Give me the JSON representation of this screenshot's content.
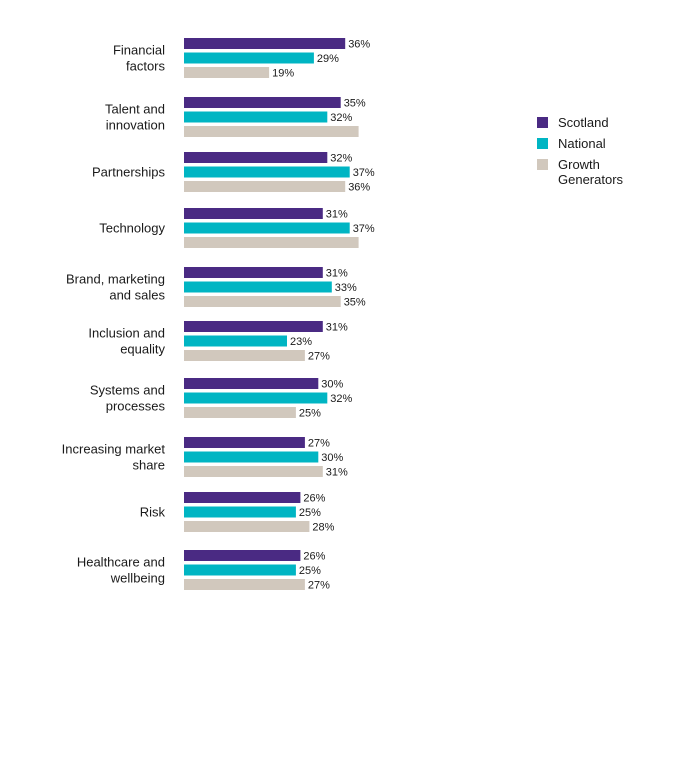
{
  "chart_data": {
    "type": "bar",
    "orientation": "horizontal",
    "categories": [
      [
        "Financial",
        "factors"
      ],
      [
        "Talent and",
        "innovation"
      ],
      [
        "Partnerships"
      ],
      [
        "Technology"
      ],
      [
        "Brand, marketing",
        "and sales"
      ],
      [
        "Inclusion and",
        "equality"
      ],
      [
        "Systems and",
        "processes"
      ],
      [
        "Increasing market",
        "share"
      ],
      [
        "Risk"
      ],
      [
        "Healthcare and",
        "wellbeing"
      ]
    ],
    "series": [
      {
        "name": "Scotland",
        "color": "#4a2a83",
        "values": [
          36,
          35,
          32,
          31,
          31,
          31,
          30,
          27,
          26,
          26
        ]
      },
      {
        "name": "National",
        "color": "#00b5c3",
        "values": [
          29,
          32,
          37,
          37,
          33,
          23,
          32,
          30,
          25,
          25
        ]
      },
      {
        "name": "Growth Generators",
        "color": "#d1c8bd",
        "values": [
          19,
          39,
          36,
          39,
          35,
          27,
          25,
          31,
          28,
          27
        ]
      }
    ],
    "value_labels": [
      [
        "36%",
        "29%",
        "19%"
      ],
      [
        "35%",
        "32%",
        ""
      ],
      [
        "32%",
        "37%",
        "36%"
      ],
      [
        "31%",
        "37%",
        ""
      ],
      [
        "31%",
        "33%",
        "35%"
      ],
      [
        "31%",
        "23%",
        "27%"
      ],
      [
        "30%",
        "32%",
        "25%"
      ],
      [
        "27%",
        "30%",
        "31%"
      ],
      [
        "26%",
        "25%",
        "28%"
      ],
      [
        "26%",
        "25%",
        "27%"
      ]
    ],
    "legend": {
      "position": "right",
      "items": [
        {
          "label_lines": [
            "Scotland"
          ],
          "color": "#4a2a83"
        },
        {
          "label_lines": [
            "National"
          ],
          "color": "#00b5c3"
        },
        {
          "label_lines": [
            "Growth",
            "Generators"
          ],
          "color": "#d1c8bd"
        }
      ]
    },
    "xlim": [
      0,
      40
    ],
    "grid": false
  }
}
